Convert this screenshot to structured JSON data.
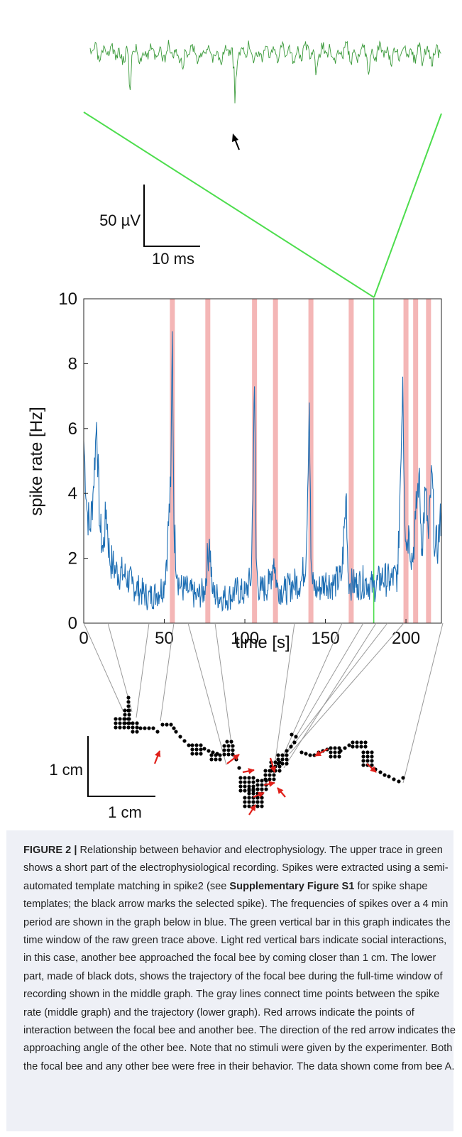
{
  "figure": {
    "scalebar_top": {
      "v_label": "50 µV",
      "h_label": "10 ms"
    },
    "scalebar_bottom": {
      "v_label": "1 cm",
      "h_label": "1 cm"
    }
  },
  "chart_data": {
    "type": "line",
    "title": "",
    "xlabel": "time [s]",
    "ylabel": "spike rate [Hz]",
    "xlim": [
      0,
      222
    ],
    "ylim": [
      0,
      10
    ],
    "xticks": [
      "0",
      "50",
      "100",
      "150",
      "200"
    ],
    "yticks": [
      "0",
      "2",
      "4",
      "6",
      "8",
      "10"
    ],
    "grid": false,
    "series": [
      {
        "color": "#1f6fb4",
        "x": [
          0,
          2,
          4,
          6,
          8,
          10,
          12,
          14,
          16,
          18,
          20,
          25,
          30,
          35,
          40,
          45,
          50,
          52,
          54,
          55,
          56,
          58,
          60,
          65,
          70,
          75,
          78,
          80,
          85,
          90,
          95,
          100,
          104,
          106,
          107,
          108,
          110,
          115,
          118,
          120,
          125,
          130,
          135,
          138,
          140,
          141,
          142,
          145,
          150,
          155,
          160,
          163,
          164,
          165,
          170,
          175,
          180,
          185,
          190,
          195,
          198,
          199,
          200,
          202,
          204,
          206,
          208,
          210,
          212,
          214,
          216,
          218,
          220,
          222
        ],
        "y": [
          5.6,
          3.5,
          2.9,
          4.2,
          6.2,
          3.0,
          2.2,
          3.5,
          2.0,
          1.8,
          1.6,
          1.5,
          1.2,
          1.0,
          0.8,
          0.9,
          1.2,
          2.5,
          4.2,
          9.0,
          3.0,
          1.5,
          1.1,
          1.0,
          0.8,
          1.0,
          2.6,
          0.9,
          0.8,
          0.8,
          1.0,
          0.9,
          1.4,
          7.3,
          2.0,
          1.2,
          1.0,
          1.2,
          2.0,
          1.1,
          1.0,
          1.2,
          1.3,
          2.0,
          6.8,
          2.0,
          1.2,
          1.0,
          1.3,
          1.2,
          1.4,
          4.0,
          1.6,
          1.2,
          1.2,
          1.3,
          1.1,
          1.4,
          1.3,
          1.5,
          7.6,
          4.0,
          2.5,
          2.8,
          1.9,
          3.2,
          4.6,
          2.3,
          4.1,
          2.6,
          4.7,
          2.2,
          2.5,
          3.4
        ]
      }
    ],
    "social_interactions_s": [
      55,
      77,
      106,
      119,
      141,
      166,
      200,
      206,
      214
    ],
    "raw_trace_window_s": 180
  },
  "caption": {
    "label": "FIGURE 2 |",
    "text_1": " Relationship between behavior and electrophysiology. The upper trace in green shows a short part of the electrophysiological recording. Spikes were extracted using a semi-automated template matching in spike2 (see ",
    "bold_ref": "Supplementary Figure S1",
    "text_2": " for spike shape templates; the black arrow marks the selected spike). The frequencies of spikes over a 4 min period are shown in the graph below in blue. The green vertical bar in this graph indicates the time window of the raw green trace above. Light red vertical bars indicate social interactions, in this case, another bee approached the focal bee by coming closer than 1 cm. The lower part, made of black dots, shows the trajectory of the focal bee during the full-time window of recording shown in the middle graph. The gray lines connect time points between the spike rate (middle graph) and the trajectory (lower graph). Red arrows indicate the points of interaction between the focal bee and another bee. The direction of the red arrow indicates the approaching angle of the other bee. Note that no stimuli were given by the experimenter. Both the focal bee and any other bee were free in their behavior. The data shown come from bee A."
  }
}
